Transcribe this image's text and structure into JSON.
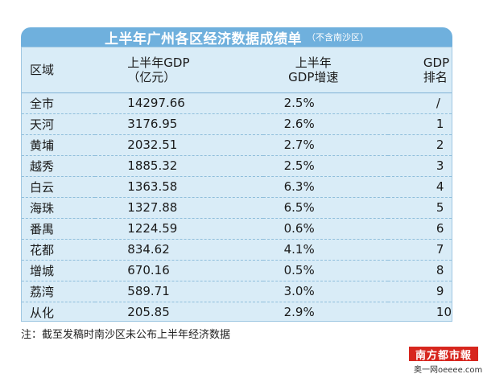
{
  "title": {
    "main": "上半年广州各区经济数据成绩单",
    "sub": "（不含南沙区）"
  },
  "table": {
    "headers": [
      [
        "区域"
      ],
      [
        "上半年GDP",
        "（亿元）"
      ],
      [
        "上半年",
        "GDP增速"
      ],
      [
        "GDP排名"
      ]
    ],
    "rows": [
      [
        "全市",
        "14297.66",
        "2.5%",
        "/"
      ],
      [
        "天河",
        "3176.95",
        "2.6%",
        "1"
      ],
      [
        "黄埔",
        "2032.51",
        "2.7%",
        "2"
      ],
      [
        "越秀",
        "1885.32",
        "2.5%",
        "3"
      ],
      [
        "白云",
        "1363.58",
        "6.3%",
        "4"
      ],
      [
        "海珠",
        "1327.88",
        "6.5%",
        "5"
      ],
      [
        "番禺",
        "1224.59",
        "0.6%",
        "6"
      ],
      [
        "花都",
        "834.62",
        "4.1%",
        "7"
      ],
      [
        "增城",
        "670.16",
        "0.5%",
        "8"
      ],
      [
        "荔湾",
        "589.71",
        "3.0%",
        "9"
      ],
      [
        "从化",
        "205.85",
        "2.9%",
        "10"
      ]
    ]
  },
  "footnote": "注：截至发稿时南沙区未公布上半年经济数据",
  "logo_text": "南方都市報",
  "watermark_text": "奥一网oeeee.com",
  "colors": {
    "title_bar": "#6fb0dd",
    "table_bg": "#d9ecf7",
    "logo_bg": "#d7261e"
  }
}
